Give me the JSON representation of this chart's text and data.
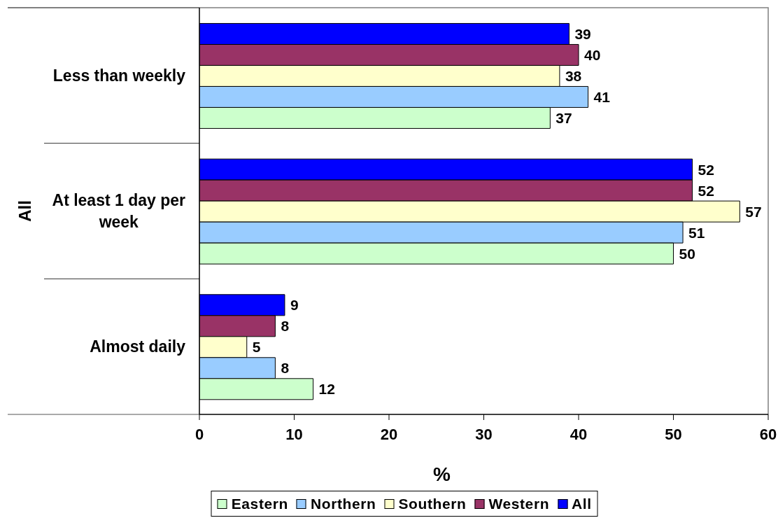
{
  "chart_data": {
    "type": "bar",
    "orientation": "horizontal",
    "xlabel": "%",
    "ylabel": "All",
    "categories": [
      "Less than weekly",
      "At least 1 day per week",
      "Almost daily"
    ],
    "series": [
      {
        "name": "Eastern",
        "color": "#ccffcc",
        "values": [
          37,
          50,
          12
        ]
      },
      {
        "name": "Northern",
        "color": "#99ccff",
        "values": [
          41,
          51,
          8
        ]
      },
      {
        "name": "Southern",
        "color": "#ffffcc",
        "values": [
          38,
          57,
          5
        ]
      },
      {
        "name": "Western",
        "color": "#993366",
        "values": [
          40,
          52,
          8
        ]
      },
      {
        "name": "All",
        "color": "#0000ff",
        "values": [
          39,
          52,
          9
        ]
      }
    ],
    "xlim": [
      0,
      60
    ],
    "xticks": [
      0,
      10,
      20,
      30,
      40,
      50,
      60
    ],
    "data_labels": true,
    "legend": "bottom"
  }
}
